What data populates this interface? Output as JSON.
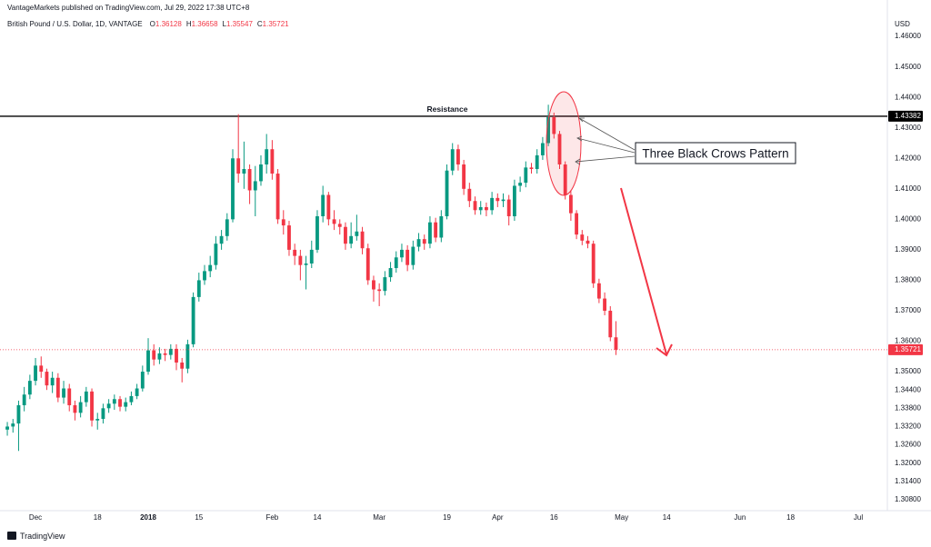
{
  "chart_data": {
    "type": "candlestick",
    "publisher": "VantageMarkets published on TradingView.com, Jul 29, 2022 17:38 UTC+8",
    "symbol": "British Pound / U.S. Dollar, 1D, VANTAGE",
    "ohlc_keys": [
      "O",
      "H",
      "L",
      "C"
    ],
    "currency": "USD",
    "brand": "TradingView",
    "annotations": [
      "Three Black Crows Pattern"
    ],
    "up_color": "#089981",
    "down_color": "#f23645",
    "grid": false,
    "xlim": [
      -1.3,
      156
    ],
    "xticks": [
      {
        "value": 5,
        "label": "Dec"
      },
      {
        "value": 16,
        "label": "18"
      },
      {
        "value": 25,
        "label": "2018"
      },
      {
        "value": 34,
        "label": "15"
      },
      {
        "value": 47,
        "label": "Feb"
      },
      {
        "value": 55,
        "label": "14"
      },
      {
        "value": 66,
        "label": "Mar"
      },
      {
        "value": 78,
        "label": "19"
      },
      {
        "value": 87,
        "label": "Apr"
      },
      {
        "value": 97,
        "label": "16"
      },
      {
        "value": 109,
        "label": "May"
      },
      {
        "value": 117,
        "label": "14"
      },
      {
        "value": 130,
        "label": "Jun"
      },
      {
        "value": 139,
        "label": "18"
      },
      {
        "value": 151,
        "label": "Jul"
      }
    ],
    "ylim": [
      1.305,
      1.4654
    ],
    "yticks": [
      {
        "value": 1.46,
        "label": "1.46000"
      },
      {
        "value": 1.45,
        "label": "1.45000"
      },
      {
        "value": 1.44,
        "label": "1.44000"
      },
      {
        "value": 1.43,
        "label": "1.43000"
      },
      {
        "value": 1.42,
        "label": "1.42000"
      },
      {
        "value": 1.41,
        "label": "1.41000"
      },
      {
        "value": 1.4,
        "label": "1.40000"
      },
      {
        "value": 1.39,
        "label": "1.39000"
      },
      {
        "value": 1.38,
        "label": "1.38000"
      },
      {
        "value": 1.37,
        "label": "1.37000"
      },
      {
        "value": 1.36,
        "label": "1.36000"
      },
      {
        "value": 1.35,
        "label": "1.35000"
      },
      {
        "value": 1.344,
        "label": "1.34400"
      },
      {
        "value": 1.338,
        "label": "1.33800"
      },
      {
        "value": 1.332,
        "label": "1.33200"
      },
      {
        "value": 1.326,
        "label": "1.32600"
      },
      {
        "value": 1.32,
        "label": "1.32000"
      },
      {
        "value": 1.314,
        "label": "1.31400"
      },
      {
        "value": 1.308,
        "label": "1.30800"
      }
    ],
    "hlines": [
      {
        "name": "Resistance",
        "value": 1.43382,
        "label": "1.43382",
        "color": "#000000"
      }
    ],
    "open": [
      1.331,
      1.332,
      1.333,
      1.339,
      1.3425,
      1.347,
      1.352,
      1.35,
      1.3455,
      1.348,
      1.3415,
      1.3445,
      1.339,
      1.3365,
      1.34,
      1.3435,
      1.334,
      1.3345,
      1.338,
      1.3395,
      1.341,
      1.3385,
      1.34,
      1.342,
      1.3445,
      1.35,
      1.357,
      1.354,
      1.356,
      1.3555,
      1.3575,
      1.353,
      1.351,
      1.359,
      1.3745,
      1.38,
      1.383,
      1.385,
      1.392,
      1.3945,
      1.4,
      1.42,
      1.415,
      1.4165,
      1.4095,
      1.4125,
      1.418,
      1.423,
      1.415,
      1.4,
      1.398,
      1.39,
      1.388,
      1.385,
      1.3855,
      1.39,
      1.401,
      1.408,
      1.4,
      1.3985,
      1.3975,
      1.392,
      1.3945,
      1.396,
      1.3905,
      1.38,
      1.377,
      1.3765,
      1.381,
      1.384,
      1.3875,
      1.39,
      1.385,
      1.391,
      1.3935,
      1.392,
      1.399,
      1.394,
      1.401,
      1.416,
      1.423,
      1.418,
      1.41,
      1.406,
      1.403,
      1.404,
      1.403,
      1.407,
      1.406,
      1.4065,
      1.401,
      1.411,
      1.412,
      1.417,
      1.4165,
      1.421,
      1.425,
      1.4335,
      1.428,
      1.418,
      1.408,
      1.402,
      1.395,
      1.393,
      1.392,
      1.379,
      1.374,
      1.37,
      1.36128
    ],
    "high": [
      1.3335,
      1.3345,
      1.3405,
      1.345,
      1.349,
      1.3545,
      1.355,
      1.351,
      1.35,
      1.3495,
      1.347,
      1.346,
      1.3405,
      1.342,
      1.345,
      1.3445,
      1.3365,
      1.3395,
      1.341,
      1.3425,
      1.342,
      1.3415,
      1.3435,
      1.346,
      1.352,
      1.361,
      1.359,
      1.358,
      1.3575,
      1.359,
      1.359,
      1.3545,
      1.3605,
      1.376,
      1.3825,
      1.385,
      1.388,
      1.3945,
      1.3965,
      1.402,
      1.423,
      1.4345,
      1.4255,
      1.418,
      1.4175,
      1.421,
      1.428,
      1.426,
      1.4165,
      1.403,
      1.3995,
      1.392,
      1.39,
      1.388,
      1.393,
      1.403,
      1.411,
      1.409,
      1.403,
      1.4,
      1.399,
      1.399,
      1.4015,
      1.3975,
      1.392,
      1.3815,
      1.379,
      1.383,
      1.386,
      1.3895,
      1.392,
      1.3915,
      1.393,
      1.3955,
      1.395,
      1.401,
      1.4005,
      1.403,
      1.418,
      1.425,
      1.4245,
      1.4195,
      1.412,
      1.4075,
      1.406,
      1.4055,
      1.409,
      1.4085,
      1.4085,
      1.408,
      1.413,
      1.414,
      1.419,
      1.4185,
      1.423,
      1.427,
      1.4376,
      1.435,
      1.429,
      1.419,
      1.4095,
      1.403,
      1.3965,
      1.3945,
      1.393,
      1.3805,
      1.376,
      1.3715,
      1.36658
    ],
    "low": [
      1.329,
      1.33,
      1.324,
      1.337,
      1.341,
      1.3455,
      1.348,
      1.344,
      1.343,
      1.34,
      1.3395,
      1.337,
      1.334,
      1.335,
      1.3385,
      1.332,
      1.331,
      1.333,
      1.3365,
      1.3375,
      1.337,
      1.337,
      1.339,
      1.341,
      1.3435,
      1.349,
      1.352,
      1.3525,
      1.3535,
      1.354,
      1.3505,
      1.3465,
      1.3495,
      1.358,
      1.373,
      1.3785,
      1.381,
      1.3835,
      1.39,
      1.393,
      1.399,
      1.412,
      1.41,
      1.405,
      1.401,
      1.411,
      1.415,
      1.413,
      1.3985,
      1.395,
      1.388,
      1.385,
      1.38,
      1.377,
      1.384,
      1.389,
      1.399,
      1.398,
      1.3965,
      1.395,
      1.39,
      1.3905,
      1.393,
      1.3885,
      1.3785,
      1.373,
      1.3715,
      1.375,
      1.3795,
      1.3825,
      1.386,
      1.383,
      1.3835,
      1.3895,
      1.39,
      1.3905,
      1.3925,
      1.3925,
      1.4,
      1.4145,
      1.416,
      1.408,
      1.404,
      1.4015,
      1.4015,
      1.401,
      1.4015,
      1.404,
      1.404,
      1.398,
      1.3995,
      1.409,
      1.4105,
      1.415,
      1.415,
      1.4195,
      1.424,
      1.4265,
      1.4165,
      1.4065,
      1.3995,
      1.3935,
      1.3915,
      1.3905,
      1.3775,
      1.3725,
      1.3685,
      1.36,
      1.35547
    ],
    "close": [
      1.332,
      1.333,
      1.339,
      1.3425,
      1.347,
      1.352,
      1.35,
      1.3455,
      1.348,
      1.3415,
      1.3445,
      1.339,
      1.3365,
      1.34,
      1.3435,
      1.334,
      1.3345,
      1.338,
      1.3395,
      1.341,
      1.3385,
      1.34,
      1.342,
      1.3445,
      1.35,
      1.357,
      1.354,
      1.356,
      1.3555,
      1.3575,
      1.353,
      1.351,
      1.359,
      1.3745,
      1.38,
      1.383,
      1.385,
      1.392,
      1.3945,
      1.4,
      1.42,
      1.415,
      1.4165,
      1.4095,
      1.4125,
      1.418,
      1.423,
      1.415,
      1.4,
      1.398,
      1.39,
      1.388,
      1.385,
      1.3855,
      1.39,
      1.401,
      1.408,
      1.4,
      1.3985,
      1.3975,
      1.392,
      1.3945,
      1.396,
      1.3905,
      1.38,
      1.377,
      1.3765,
      1.381,
      1.384,
      1.3875,
      1.39,
      1.385,
      1.391,
      1.3935,
      1.392,
      1.399,
      1.394,
      1.401,
      1.416,
      1.423,
      1.418,
      1.41,
      1.406,
      1.403,
      1.404,
      1.403,
      1.407,
      1.406,
      1.4065,
      1.401,
      1.411,
      1.412,
      1.417,
      1.4165,
      1.421,
      1.425,
      1.4335,
      1.428,
      1.418,
      1.408,
      1.402,
      1.395,
      1.393,
      1.392,
      1.379,
      1.374,
      1.37,
      1.36128,
      1.35721
    ]
  }
}
